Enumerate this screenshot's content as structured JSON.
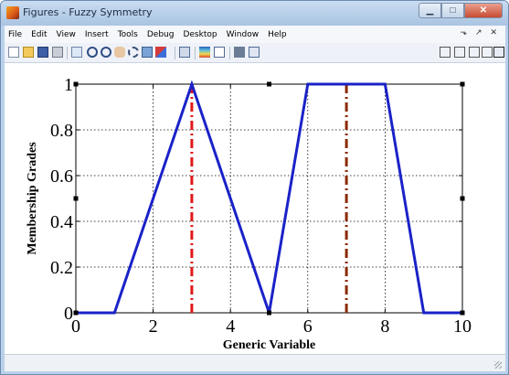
{
  "window": {
    "title": "Figures - Fuzzy Symmetry",
    "buttons": {
      "minimize": "▁",
      "maximize": "□",
      "close": "✕"
    }
  },
  "menubar": {
    "items": [
      "File",
      "Edit",
      "View",
      "Insert",
      "Tools",
      "Debug",
      "Desktop",
      "Window",
      "Help"
    ],
    "right": "⬎ ↗ ✕"
  },
  "toolbar": {
    "icons": [
      "new-figure-icon",
      "open-icon",
      "save-icon",
      "print-icon",
      "pointer-icon",
      "zoom-in-icon",
      "zoom-out-icon",
      "pan-icon",
      "rotate-icon",
      "data-cursor-icon",
      "brush-icon",
      "link-icon",
      "colorbar-icon",
      "legend-icon",
      "hide-plot-tools-icon",
      "show-plot-tools-icon"
    ],
    "dock_icons": [
      "tile-icon",
      "columns-icon",
      "rows-icon",
      "float-icon",
      "maximize-pane-icon"
    ]
  },
  "colors": {
    "membership_line": "#1a22c8",
    "marker_3": "#e01818",
    "marker_7": "#8b2a00",
    "grid": "#000000"
  },
  "chart_data": {
    "type": "line",
    "title": "",
    "xlabel": "Generic Variable",
    "ylabel": "Membership Grades",
    "xlim": [
      0,
      10
    ],
    "ylim": [
      0,
      1
    ],
    "xticks": [
      "0",
      "2",
      "4",
      "6",
      "8",
      "10"
    ],
    "yticks": [
      "0",
      "0.2",
      "0.4",
      "0.6",
      "0.8",
      "1"
    ],
    "grid": true,
    "series": [
      {
        "style": "solid",
        "x": [
          0,
          1,
          3,
          5,
          6,
          8,
          9,
          10
        ],
        "y": [
          0,
          0,
          1,
          0,
          1,
          1,
          0,
          0
        ]
      }
    ],
    "vertical_lines": [
      {
        "x": 3,
        "style": "dash-dot"
      },
      {
        "x": 7,
        "style": "dash-dot"
      }
    ]
  }
}
